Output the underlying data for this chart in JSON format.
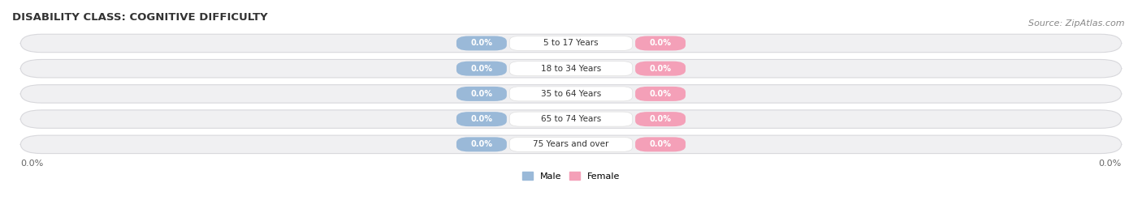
{
  "title": "DISABILITY CLASS: COGNITIVE DIFFICULTY",
  "source_text": "Source: ZipAtlas.com",
  "categories": [
    "5 to 17 Years",
    "18 to 34 Years",
    "35 to 64 Years",
    "65 to 74 Years",
    "75 Years and over"
  ],
  "male_values": [
    0.0,
    0.0,
    0.0,
    0.0,
    0.0
  ],
  "female_values": [
    0.0,
    0.0,
    0.0,
    0.0,
    0.0
  ],
  "male_color": "#9ab9d8",
  "female_color": "#f4a0b8",
  "row_bg_color": "#f0f0f2",
  "row_edge_color": "#d8d8dc",
  "cat_bg_color": "#ffffff",
  "title_fontsize": 9.5,
  "source_fontsize": 8,
  "pill_fontsize": 7,
  "category_fontsize": 7.5,
  "axis_label_fontsize": 8,
  "x_left_label": "0.0%",
  "x_right_label": "0.0%",
  "legend_male": "Male",
  "legend_female": "Female",
  "background_color": "#ffffff"
}
